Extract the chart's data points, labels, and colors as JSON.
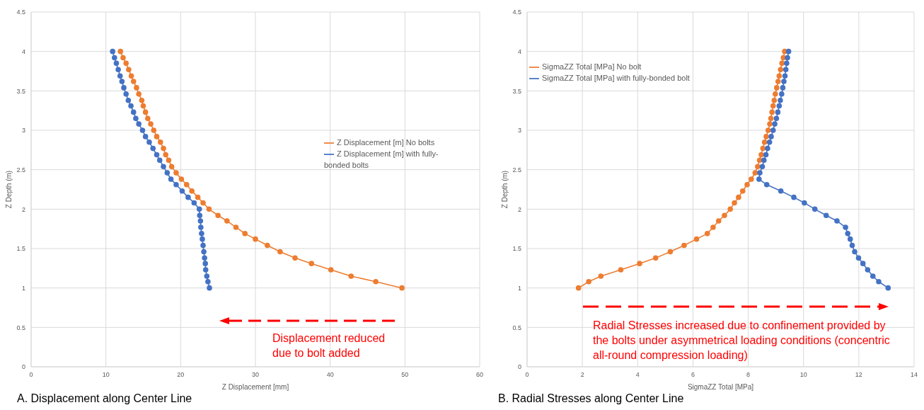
{
  "chart_data": [
    {
      "type": "line",
      "title": "A.  Displacement along Center Line",
      "xlabel": "Z Displacement [mm]",
      "ylabel": "Z Depth (m)",
      "xlim": [
        0,
        60
      ],
      "xticks": [
        0,
        10,
        20,
        30,
        40,
        50,
        60
      ],
      "ylim": [
        0,
        4.5
      ],
      "yticks": [
        0,
        0.5,
        1,
        1.5,
        2,
        2.5,
        3,
        3.5,
        4,
        4.5
      ],
      "grid": true,
      "legend": "right",
      "marker": "circle",
      "line_style": "solid",
      "annotations": [
        "Displacement reduced due to bolt added"
      ],
      "series": [
        {
          "name": "Z Displacement [m] No bolts",
          "color": "#ed7d31",
          "x": [
            11.95,
            12.3,
            12.7,
            13.05,
            13.4,
            13.7,
            14.1,
            14.4,
            14.8,
            15.0,
            15.3,
            15.6,
            16.0,
            16.4,
            16.8,
            17.3,
            17.7,
            18.0,
            18.4,
            18.8,
            19.4,
            20.1,
            20.8,
            21.5,
            22.3,
            23.0,
            23.8,
            25.0,
            26.2,
            27.4,
            28.6,
            30.0,
            31.6,
            33.3,
            35.3,
            37.5,
            40.1,
            42.8,
            46.1,
            49.6
          ],
          "values": [
            4,
            3.92,
            3.85,
            3.77,
            3.69,
            3.62,
            3.54,
            3.46,
            3.38,
            3.31,
            3.23,
            3.15,
            3.08,
            3.0,
            2.92,
            2.85,
            2.77,
            2.69,
            2.62,
            2.54,
            2.46,
            2.38,
            2.31,
            2.23,
            2.15,
            2.08,
            2.0,
            1.92,
            1.85,
            1.77,
            1.69,
            1.62,
            1.54,
            1.46,
            1.38,
            1.31,
            1.23,
            1.15,
            1.08,
            1.0
          ]
        },
        {
          "name": "Z Displacement [m] with fully-bonded bolts",
          "color": "#4472c4",
          "x": [
            10.9,
            11.15,
            11.4,
            11.65,
            11.9,
            12.15,
            12.4,
            12.7,
            13.0,
            13.35,
            13.7,
            14.0,
            14.4,
            14.9,
            15.3,
            15.8,
            16.3,
            16.8,
            17.2,
            17.7,
            18.2,
            18.7,
            19.4,
            20.2,
            21.0,
            21.8,
            22.5,
            22.55,
            22.65,
            22.7,
            22.8,
            22.9,
            23.0,
            23.1,
            23.2,
            23.3,
            23.35,
            23.5,
            23.65,
            23.85
          ],
          "values": [
            4,
            3.92,
            3.85,
            3.77,
            3.69,
            3.62,
            3.54,
            3.46,
            3.38,
            3.31,
            3.23,
            3.15,
            3.08,
            3.0,
            2.92,
            2.85,
            2.77,
            2.69,
            2.62,
            2.54,
            2.46,
            2.38,
            2.31,
            2.23,
            2.15,
            2.08,
            2.0,
            1.92,
            1.85,
            1.77,
            1.69,
            1.62,
            1.54,
            1.46,
            1.38,
            1.31,
            1.23,
            1.15,
            1.08,
            1.0
          ]
        }
      ]
    },
    {
      "type": "line",
      "title": "B.  Radial Stresses along Center Line",
      "xlabel": "SigmaZZ Total [MPa]",
      "ylabel": "Z Depth (m)",
      "xlim": [
        0,
        14
      ],
      "xticks": [
        0,
        2,
        4,
        6,
        8,
        10,
        12,
        14
      ],
      "ylim": [
        0,
        4.5
      ],
      "yticks": [
        0,
        0.5,
        1,
        1.5,
        2,
        2.5,
        3,
        3.5,
        4,
        4.5
      ],
      "grid": true,
      "legend": "top left",
      "marker": "circle",
      "line_style": "solid",
      "annotations": [
        "Radial Stresses increased due to confinement provided by the bolts under asymmetrical loading conditions (concentric all-round compression loading)"
      ],
      "series": [
        {
          "name": "SigmaZZ Total [MPa] No bolt",
          "color": "#ed7d31",
          "x": [
            9.32,
            9.27,
            9.22,
            9.17,
            9.12,
            9.08,
            9.03,
            8.98,
            8.94,
            8.9,
            8.86,
            8.82,
            8.78,
            8.72,
            8.65,
            8.59,
            8.53,
            8.47,
            8.41,
            8.34,
            8.25,
            8.11,
            7.96,
            7.8,
            7.65,
            7.5,
            7.35,
            7.14,
            6.93,
            6.73,
            6.52,
            6.13,
            5.68,
            5.18,
            4.65,
            4.07,
            3.39,
            2.67,
            2.23,
            1.86
          ],
          "values": [
            4,
            3.92,
            3.85,
            3.77,
            3.69,
            3.62,
            3.54,
            3.46,
            3.38,
            3.31,
            3.23,
            3.15,
            3.08,
            3.0,
            2.92,
            2.85,
            2.77,
            2.69,
            2.62,
            2.54,
            2.46,
            2.38,
            2.31,
            2.23,
            2.15,
            2.08,
            2.0,
            1.92,
            1.85,
            1.77,
            1.69,
            1.62,
            1.54,
            1.46,
            1.38,
            1.31,
            1.23,
            1.15,
            1.08,
            1.0
          ]
        },
        {
          "name": "SigmaZZ Total [MPa] with  fully-bonded bolt",
          "color": "#4472c4",
          "x": [
            9.46,
            9.42,
            9.39,
            9.36,
            9.33,
            9.29,
            9.25,
            9.21,
            9.16,
            9.12,
            9.07,
            9.02,
            8.96,
            8.9,
            8.83,
            8.77,
            8.7,
            8.64,
            8.57,
            8.51,
            8.42,
            8.39,
            8.67,
            9.18,
            9.65,
            10.03,
            10.41,
            10.82,
            11.21,
            11.52,
            11.6,
            11.69,
            11.76,
            11.85,
            11.99,
            12.15,
            12.32,
            12.51,
            12.72,
            13.06
          ],
          "values": [
            4,
            3.92,
            3.85,
            3.77,
            3.69,
            3.62,
            3.54,
            3.46,
            3.38,
            3.31,
            3.23,
            3.15,
            3.08,
            3.0,
            2.92,
            2.85,
            2.77,
            2.69,
            2.62,
            2.54,
            2.46,
            2.38,
            2.31,
            2.23,
            2.15,
            2.08,
            2.0,
            1.92,
            1.85,
            1.77,
            1.69,
            1.62,
            1.54,
            1.46,
            1.38,
            1.31,
            1.23,
            1.15,
            1.08,
            1.0
          ]
        }
      ]
    }
  ]
}
